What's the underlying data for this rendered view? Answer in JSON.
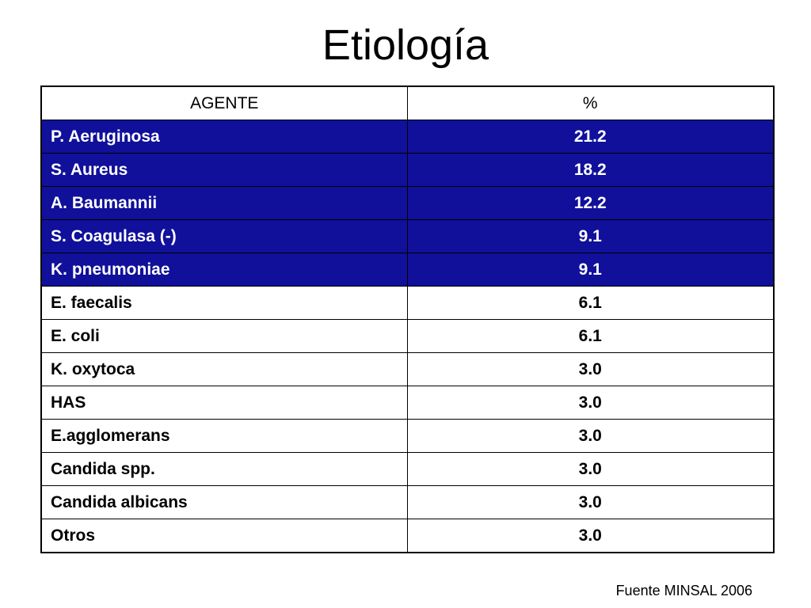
{
  "title": "Etiología",
  "colors": {
    "highlight_background": "#10109a",
    "highlight_text": "#ffffff",
    "border": "#000000"
  },
  "table": {
    "headers": [
      "AGENTE",
      "%"
    ],
    "rows": [
      {
        "agent": "P. Aeruginosa",
        "percent": "21.2",
        "highlighted": true
      },
      {
        "agent": "S. Aureus",
        "percent": "18.2",
        "highlighted": true
      },
      {
        "agent": "A. Baumannii",
        "percent": "12.2",
        "highlighted": true
      },
      {
        "agent": "S. Coagulasa (-)",
        "percent": "9.1",
        "highlighted": true
      },
      {
        "agent": "K. pneumoniae",
        "percent": "9.1",
        "highlighted": true
      },
      {
        "agent": "E. faecalis",
        "percent": "6.1",
        "highlighted": false
      },
      {
        "agent": "E. coli",
        "percent": "6.1",
        "highlighted": false
      },
      {
        "agent": "K. oxytoca",
        "percent": "3.0",
        "highlighted": false
      },
      {
        "agent": "HAS",
        "percent": "3.0",
        "highlighted": false
      },
      {
        "agent": "E.agglomerans",
        "percent": "3.0",
        "highlighted": false
      },
      {
        "agent": "Candida spp.",
        "percent": "3.0",
        "highlighted": false
      },
      {
        "agent": "Candida albicans",
        "percent": "3.0",
        "highlighted": false
      },
      {
        "agent": "Otros",
        "percent": "3.0",
        "highlighted": false
      }
    ]
  },
  "source": "Fuente MINSAL 2006"
}
